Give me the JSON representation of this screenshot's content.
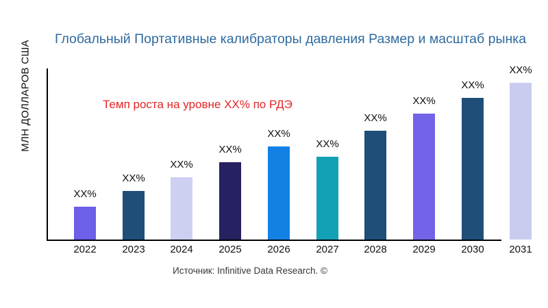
{
  "page": {
    "title": "Глобальный Портативные калибраторы давления Размер и масштаб рынка",
    "y_axis_label": "МЛН ДОЛЛАРОВ США",
    "annotation": "Темп роста на уровне XX% по РДЭ",
    "source": "Источник: Infinitive Data Research. ©"
  },
  "colors": {
    "title": "#2e6a9f",
    "annotation": "#e42527",
    "axis": "#000000",
    "text": "#0d0d0d",
    "source": "#383838"
  },
  "chart_data": {
    "type": "bar",
    "title": "Глобальный Портативные калибраторы давления Размер и масштаб рынка",
    "xlabel": "",
    "ylabel": "МЛН ДОЛЛАРОВ США",
    "categories": [
      "2022",
      "2023",
      "2024",
      "2025",
      "2026",
      "2027",
      "2028",
      "2029",
      "2030",
      "2031"
    ],
    "bar_value_labels": [
      "XX%",
      "XX%",
      "XX%",
      "XX%",
      "XX%",
      "XX%",
      "XX%",
      "XX%",
      "XX%",
      "XX%"
    ],
    "values_relative": [
      0.19,
      0.28,
      0.36,
      0.45,
      0.54,
      0.48,
      0.63,
      0.73,
      0.82,
      0.91
    ],
    "bar_colors": [
      "#6c5fe8",
      "#1f4e79",
      "#cdd0f1",
      "#262160",
      "#1380e4",
      "#13a1b5",
      "#1f4e79",
      "#7263e9",
      "#1f4e79",
      "#c9ccef"
    ],
    "annotation": "Темп роста на уровне XX% по РДЭ",
    "grid": false,
    "legend": false
  }
}
